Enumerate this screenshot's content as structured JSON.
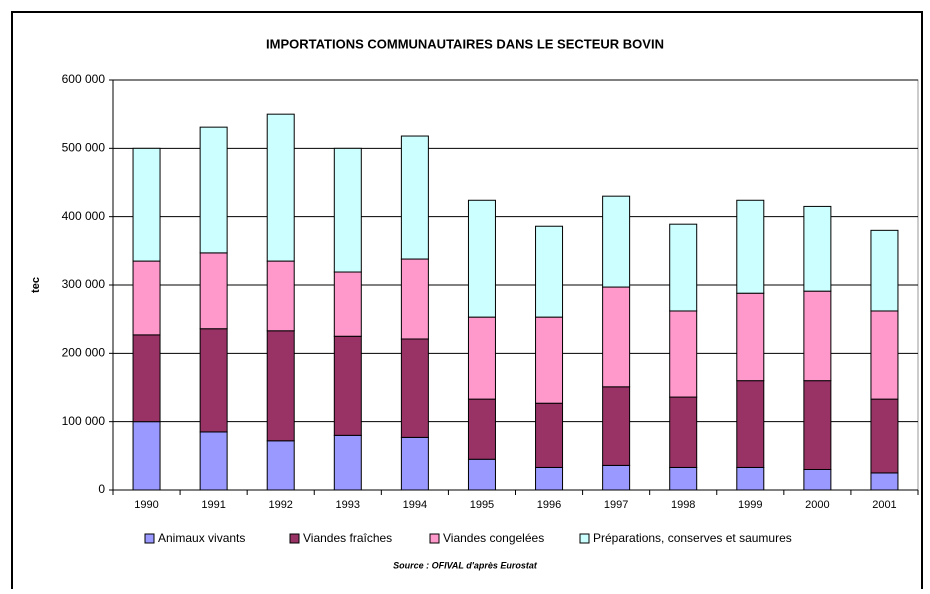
{
  "chart_data": {
    "type": "stacked_bar",
    "title": "IMPORTATIONS COMMUNAUTAIRES DANS LE SECTEUR BOVIN",
    "y_label": "tec",
    "source": "Source : OFIVAL d'après Eurostat",
    "categories": [
      "1990",
      "1991",
      "1992",
      "1993",
      "1994",
      "1995",
      "1996",
      "1997",
      "1998",
      "1999",
      "2000",
      "2001"
    ],
    "series": [
      {
        "name": "Animaux vivants",
        "color": "#9999ff",
        "values": [
          100000,
          85000,
          72000,
          80000,
          77000,
          45000,
          33000,
          36000,
          33000,
          33000,
          30000,
          25000
        ]
      },
      {
        "name": "Viandes fraîches",
        "color": "#993366",
        "values": [
          127000,
          151000,
          161000,
          145000,
          144000,
          88000,
          94000,
          115000,
          103000,
          127000,
          130000,
          108000
        ]
      },
      {
        "name": "Viandes congelées",
        "color": "#ff99cc",
        "values": [
          108000,
          111000,
          102000,
          94000,
          117000,
          120000,
          126000,
          146000,
          126000,
          128000,
          131000,
          129000
        ]
      },
      {
        "name": "Préparations, conserves et saumures",
        "color": "#ccffff",
        "values": [
          165000,
          184000,
          215000,
          181000,
          180000,
          171000,
          133000,
          133000,
          127000,
          136000,
          124000,
          118000
        ]
      }
    ],
    "ylim": [
      0,
      600000
    ],
    "yticks": [
      0,
      {
        "value": 100000,
        "label": "100 000"
      },
      {
        "value": 200000,
        "label": "200 000"
      },
      {
        "value": 300000,
        "label": "300 000"
      },
      {
        "value": 400000,
        "label": "400 000"
      },
      {
        "value": 500000,
        "label": "500 000"
      },
      {
        "value": 600000,
        "label": "600 000"
      }
    ],
    "grid": true
  }
}
